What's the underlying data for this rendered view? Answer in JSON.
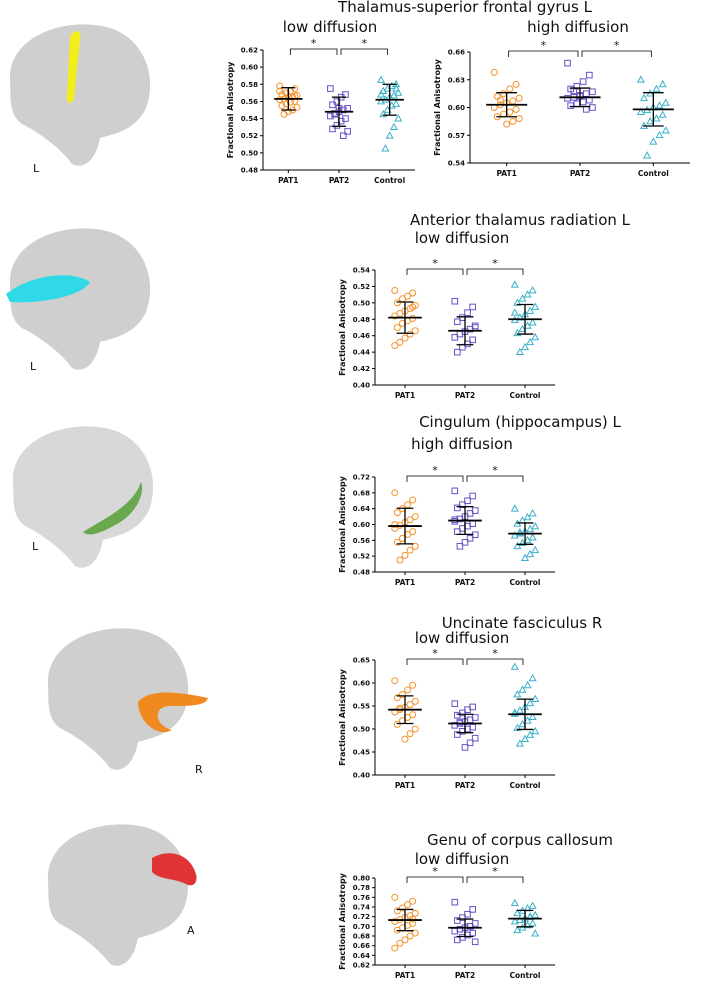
{
  "sections": [
    {
      "heading": "Thalamus-superior frontal gyrus L",
      "brain_label": "L"
    },
    {
      "heading": "Anterior thalamus radiation L",
      "brain_label": "L"
    },
    {
      "heading": "Cingulum (hippocampus) L",
      "brain_label": "L"
    },
    {
      "heading": "Uncinate fasciculus R",
      "brain_label": "R"
    },
    {
      "heading": "Genu of corpus callosum",
      "brain_label": "A"
    }
  ],
  "chart_data": [
    {
      "type": "dotplot",
      "title": "low diffusion",
      "ylabel": "Fractional Anisotropy",
      "ylim": [
        0.48,
        0.62
      ],
      "yticks": [
        0.48,
        {
          "value": 0.5,
          "label": "0.50"
        },
        0.52,
        0.54,
        0.56,
        0.58,
        {
          "value": 0.6,
          "label": "0.60"
        },
        0.62
      ],
      "groups": [
        {
          "name": "PAT1",
          "color": "#f5922a",
          "marker": "circle",
          "mean": 0.563,
          "sd": 0.013,
          "values": [
            0.578,
            0.575,
            0.572,
            0.57,
            0.568,
            0.567,
            0.565,
            0.565,
            0.563,
            0.562,
            0.56,
            0.559,
            0.557,
            0.555,
            0.553,
            0.55,
            0.548,
            0.545,
            0.572,
            0.566
          ]
        },
        {
          "name": "PAT2",
          "color": "#6a4fc9",
          "marker": "square",
          "mean": 0.548,
          "sd": 0.017,
          "values": [
            0.575,
            0.568,
            0.565,
            0.56,
            0.556,
            0.552,
            0.55,
            0.548,
            0.546,
            0.543,
            0.54,
            0.537,
            0.532,
            0.528,
            0.525,
            0.52,
            0.552,
            0.545
          ]
        },
        {
          "name": "Control",
          "color": "#3ab0c8",
          "marker": "triangle",
          "mean": 0.562,
          "sd": 0.018,
          "values": [
            0.585,
            0.58,
            0.578,
            0.575,
            0.572,
            0.57,
            0.567,
            0.565,
            0.562,
            0.56,
            0.557,
            0.555,
            0.55,
            0.545,
            0.54,
            0.53,
            0.52,
            0.505,
            0.568,
            0.575
          ]
        }
      ],
      "comparisons": [
        {
          "groups": [
            0,
            1
          ],
          "label": "*"
        },
        {
          "groups": [
            1,
            2
          ],
          "label": "*"
        }
      ]
    },
    {
      "type": "dotplot",
      "title": "high diffusion",
      "ylabel": "Fractional Anisotropy",
      "ylim": [
        0.54,
        0.66
      ],
      "yticks": [
        0.54,
        0.57,
        {
          "value": 0.6,
          "label": "0.60"
        },
        0.63,
        0.66
      ],
      "groups": [
        {
          "name": "PAT1",
          "color": "#f5922a",
          "marker": "circle",
          "mean": 0.603,
          "sd": 0.013,
          "values": [
            0.638,
            0.625,
            0.62,
            0.615,
            0.612,
            0.61,
            0.607,
            0.605,
            0.603,
            0.6,
            0.598,
            0.595,
            0.593,
            0.59,
            0.588,
            0.585,
            0.582,
            0.608
          ]
        },
        {
          "name": "PAT2",
          "color": "#6a4fc9",
          "marker": "square",
          "mean": 0.611,
          "sd": 0.01,
          "values": [
            0.648,
            0.635,
            0.628,
            0.623,
            0.62,
            0.617,
            0.615,
            0.613,
            0.611,
            0.61,
            0.608,
            0.606,
            0.604,
            0.602,
            0.6,
            0.598,
            0.612,
            0.618
          ]
        },
        {
          "name": "Control",
          "color": "#3ab0c8",
          "marker": "triangle",
          "mean": 0.598,
          "sd": 0.018,
          "values": [
            0.63,
            0.625,
            0.62,
            0.615,
            0.61,
            0.605,
            0.602,
            0.6,
            0.597,
            0.595,
            0.592,
            0.588,
            0.585,
            0.58,
            0.575,
            0.57,
            0.563,
            0.548
          ]
        }
      ],
      "comparisons": [
        {
          "groups": [
            0,
            1
          ],
          "label": "*"
        },
        {
          "groups": [
            1,
            2
          ],
          "label": "*"
        }
      ]
    },
    {
      "type": "dotplot",
      "title": "low diffusion",
      "ylabel": "Fractional Anisotropy",
      "ylim": [
        0.4,
        0.54
      ],
      "yticks": [
        {
          "value": 0.4,
          "label": "0.40"
        },
        0.42,
        0.44,
        0.46,
        0.48,
        {
          "value": 0.5,
          "label": "0.50"
        },
        0.52,
        0.54
      ],
      "groups": [
        {
          "name": "PAT1",
          "color": "#f5922a",
          "marker": "circle",
          "mean": 0.482,
          "sd": 0.019,
          "values": [
            0.515,
            0.512,
            0.508,
            0.505,
            0.5,
            0.497,
            0.493,
            0.49,
            0.487,
            0.484,
            0.481,
            0.478,
            0.475,
            0.47,
            0.466,
            0.462,
            0.457,
            0.452,
            0.448,
            0.495
          ]
        },
        {
          "name": "PAT2",
          "color": "#6a4fc9",
          "marker": "square",
          "mean": 0.466,
          "sd": 0.017,
          "values": [
            0.502,
            0.495,
            0.488,
            0.482,
            0.477,
            0.472,
            0.468,
            0.465,
            0.462,
            0.458,
            0.455,
            0.45,
            0.446,
            0.44,
            0.47
          ]
        },
        {
          "name": "Control",
          "color": "#3ab0c8",
          "marker": "triangle",
          "mean": 0.48,
          "sd": 0.018,
          "values": [
            0.522,
            0.515,
            0.51,
            0.505,
            0.5,
            0.495,
            0.49,
            0.486,
            0.482,
            0.479,
            0.476,
            0.472,
            0.468,
            0.463,
            0.458,
            0.452,
            0.446,
            0.44,
            0.488
          ]
        }
      ],
      "comparisons": [
        {
          "groups": [
            0,
            1
          ],
          "label": "*"
        },
        {
          "groups": [
            1,
            2
          ],
          "label": "*"
        }
      ]
    },
    {
      "type": "dotplot",
      "title": "high diffusion",
      "ylabel": "Fractional Anisotropy",
      "ylim": [
        0.48,
        0.72
      ],
      "yticks": [
        0.48,
        0.52,
        0.56,
        {
          "value": 0.6,
          "label": "0.60"
        },
        0.64,
        0.68,
        0.72
      ],
      "groups": [
        {
          "name": "PAT1",
          "color": "#f5922a",
          "marker": "circle",
          "mean": 0.596,
          "sd": 0.045,
          "values": [
            0.68,
            0.662,
            0.65,
            0.64,
            0.63,
            0.62,
            0.612,
            0.605,
            0.598,
            0.59,
            0.582,
            0.575,
            0.565,
            0.555,
            0.545,
            0.535,
            0.522,
            0.51,
            0.6
          ]
        },
        {
          "name": "PAT2",
          "color": "#6a4fc9",
          "marker": "square",
          "mean": 0.61,
          "sd": 0.035,
          "values": [
            0.685,
            0.672,
            0.66,
            0.65,
            0.642,
            0.635,
            0.628,
            0.62,
            0.614,
            0.608,
            0.602,
            0.596,
            0.59,
            0.582,
            0.574,
            0.565,
            0.555,
            0.545,
            0.612
          ]
        },
        {
          "name": "Control",
          "color": "#3ab0c8",
          "marker": "triangle",
          "mean": 0.577,
          "sd": 0.027,
          "values": [
            0.64,
            0.628,
            0.618,
            0.61,
            0.602,
            0.595,
            0.588,
            0.582,
            0.577,
            0.572,
            0.567,
            0.56,
            0.553,
            0.545,
            0.535,
            0.525,
            0.515,
            0.58
          ]
        }
      ],
      "comparisons": [
        {
          "groups": [
            0,
            1
          ],
          "label": "*"
        },
        {
          "groups": [
            1,
            2
          ],
          "label": "*"
        }
      ]
    },
    {
      "type": "dotplot",
      "title": "low diffusion",
      "ylabel": "Fractional Anisotropy",
      "ylim": [
        0.4,
        0.65
      ],
      "yticks": [
        {
          "value": 0.4,
          "label": "0.40"
        },
        0.45,
        {
          "value": 0.5,
          "label": "0.50"
        },
        0.55,
        {
          "value": 0.6,
          "label": "0.60"
        },
        0.65
      ],
      "groups": [
        {
          "name": "PAT1",
          "color": "#f5922a",
          "marker": "circle",
          "mean": 0.542,
          "sd": 0.03,
          "values": [
            0.605,
            0.595,
            0.585,
            0.575,
            0.568,
            0.56,
            0.553,
            0.547,
            0.542,
            0.537,
            0.531,
            0.525,
            0.518,
            0.51,
            0.5,
            0.49,
            0.478,
            0.545
          ]
        },
        {
          "name": "PAT2",
          "color": "#6a4fc9",
          "marker": "square",
          "mean": 0.512,
          "sd": 0.02,
          "values": [
            0.555,
            0.548,
            0.542,
            0.535,
            0.53,
            0.525,
            0.52,
            0.516,
            0.512,
            0.508,
            0.504,
            0.5,
            0.495,
            0.488,
            0.48,
            0.47,
            0.46,
            0.515
          ]
        },
        {
          "name": "Control",
          "color": "#3ab0c8",
          "marker": "triangle",
          "mean": 0.532,
          "sd": 0.033,
          "values": [
            0.635,
            0.61,
            0.595,
            0.585,
            0.575,
            0.565,
            0.556,
            0.548,
            0.54,
            0.533,
            0.526,
            0.518,
            0.51,
            0.502,
            0.495,
            0.487,
            0.478,
            0.468,
            0.535
          ]
        }
      ],
      "comparisons": [
        {
          "groups": [
            0,
            1
          ],
          "label": "*"
        },
        {
          "groups": [
            1,
            2
          ],
          "label": "*"
        }
      ]
    },
    {
      "type": "dotplot",
      "title": "low diffusion",
      "ylabel": "Fractional Anisotropy",
      "ylim": [
        0.62,
        0.8
      ],
      "yticks": [
        0.62,
        0.64,
        0.66,
        0.68,
        {
          "value": 0.7,
          "label": "0.70"
        },
        0.72,
        0.74,
        0.76,
        0.78,
        {
          "value": 0.8,
          "label": "0.80"
        }
      ],
      "groups": [
        {
          "name": "PAT1",
          "color": "#f5922a",
          "marker": "circle",
          "mean": 0.713,
          "sd": 0.022,
          "values": [
            0.76,
            0.752,
            0.745,
            0.738,
            0.732,
            0.727,
            0.722,
            0.718,
            0.714,
            0.71,
            0.706,
            0.702,
            0.697,
            0.692,
            0.686,
            0.68,
            0.672,
            0.665,
            0.655,
            0.715
          ]
        },
        {
          "name": "PAT2",
          "color": "#6a4fc9",
          "marker": "square",
          "mean": 0.697,
          "sd": 0.018,
          "values": [
            0.75,
            0.735,
            0.725,
            0.718,
            0.712,
            0.706,
            0.7,
            0.697,
            0.694,
            0.69,
            0.686,
            0.682,
            0.677,
            0.672,
            0.668,
            0.7
          ]
        },
        {
          "name": "Control",
          "color": "#3ab0c8",
          "marker": "triangle",
          "mean": 0.716,
          "sd": 0.017,
          "values": [
            0.748,
            0.742,
            0.737,
            0.732,
            0.727,
            0.723,
            0.719,
            0.716,
            0.713,
            0.71,
            0.706,
            0.702,
            0.697,
            0.692,
            0.685,
            0.72
          ]
        }
      ],
      "comparisons": [
        {
          "groups": [
            0,
            1
          ],
          "label": "*"
        },
        {
          "groups": [
            1,
            2
          ],
          "label": "*"
        }
      ]
    }
  ]
}
